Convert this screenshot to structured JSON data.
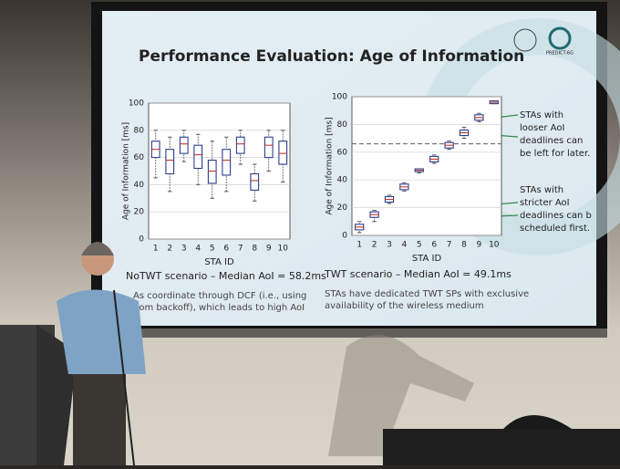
{
  "slide": {
    "title": "Performance Evaluation: Age of Information",
    "logo_text": "PREDICT-6G",
    "left_caption": "NoTWT scenario – Median AoI = 58.2ms",
    "left_note": [
      "As coordinate through DCF (i.e., using",
      "dom backoff), which leads to high AoI"
    ],
    "right_caption": "TWT scenario – Median AoI = 49.1ms",
    "right_note": [
      "STAs have dedicated TWT SPs with exclusive",
      "availability of the wireless medium"
    ],
    "annotation_top": [
      "STAs with",
      "looser AoI",
      "deadlines can",
      "be left for later."
    ],
    "annotation_bottom": [
      "STAs with",
      "stricter AoI",
      "deadlines can b",
      "scheduled first."
    ]
  },
  "chart_data": [
    {
      "type": "box",
      "xlabel": "STA ID",
      "ylabel": "Age of Information [ms]",
      "categories": [
        "1",
        "2",
        "3",
        "4",
        "5",
        "6",
        "7",
        "8",
        "9",
        "10"
      ],
      "color": "#2b3f8c",
      "whisker_low": [
        45,
        35,
        57,
        40,
        30,
        35,
        55,
        28,
        50,
        42
      ],
      "q1": [
        60,
        48,
        63,
        52,
        41,
        47,
        63,
        36,
        60,
        55
      ],
      "median": [
        66,
        58,
        70,
        62,
        50,
        58,
        70,
        43,
        69,
        63
      ],
      "q3": [
        72,
        66,
        75,
        69,
        58,
        66,
        75,
        48,
        75,
        72
      ],
      "whisker_high": [
        80,
        75,
        80,
        77,
        72,
        75,
        80,
        55,
        80,
        80
      ],
      "ylim": [
        0,
        100
      ],
      "yticks": [
        0,
        20,
        40,
        60,
        80,
        100
      ],
      "grid": true
    },
    {
      "type": "box",
      "xlabel": "STA ID",
      "ylabel": "Age of Information [ms]",
      "categories": [
        "1",
        "2",
        "3",
        "4",
        "5",
        "6",
        "7",
        "8",
        "9",
        "10"
      ],
      "color": "#2b3f8c",
      "whisker_low": [
        2,
        10,
        23,
        32,
        45,
        52,
        62,
        70,
        82,
        95
      ],
      "q1": [
        4,
        13,
        24,
        33,
        46,
        53,
        63,
        72,
        83,
        95
      ],
      "median": [
        6,
        15,
        26,
        35,
        47,
        55,
        65,
        74,
        85,
        96
      ],
      "q3": [
        8,
        17,
        28,
        37,
        48,
        57,
        67,
        76,
        87,
        97
      ],
      "whisker_high": [
        10,
        18,
        29,
        38,
        48,
        58,
        68,
        78,
        88,
        97
      ],
      "reference_line": 66,
      "ylim": [
        0,
        100
      ],
      "yticks": [
        0,
        20,
        40,
        60,
        80,
        100
      ],
      "grid": true
    }
  ]
}
